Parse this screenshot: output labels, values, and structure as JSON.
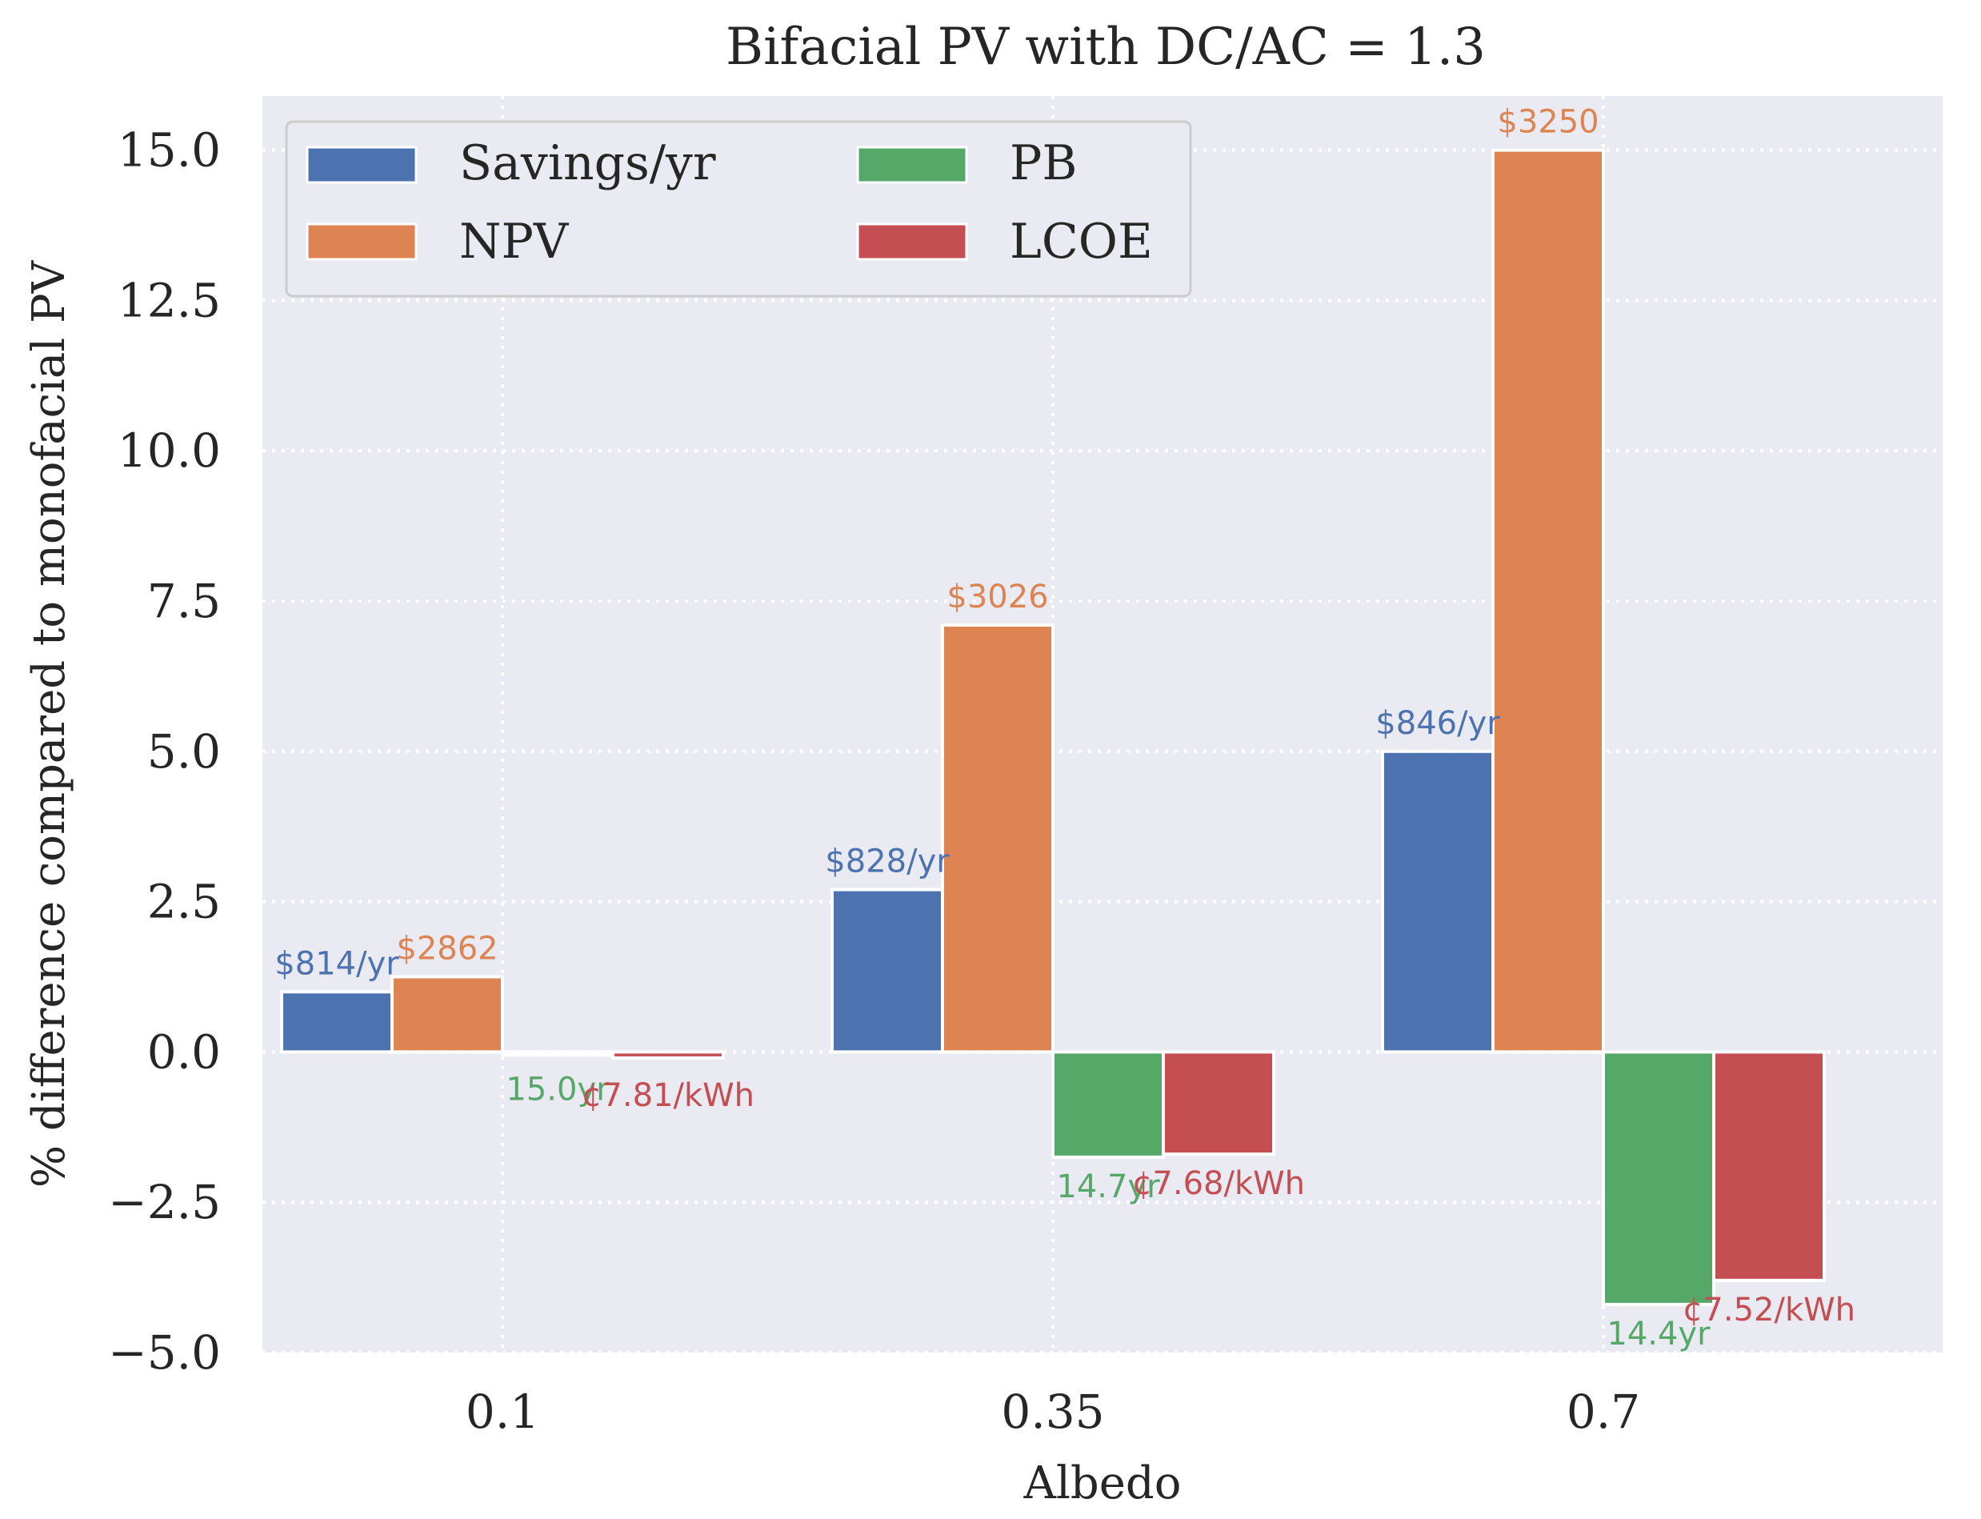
{
  "colors": {
    "plot_bg": "#eaeaf2",
    "grid": "#ffffff",
    "text": "#262626",
    "savings": "#4c72b0",
    "npv": "#dd8452",
    "pb": "#55a868",
    "lcoe": "#c44e52"
  },
  "chart_data": {
    "type": "bar",
    "title": "Bifacial PV with DC/AC = 1.3",
    "xlabel": "Albedo",
    "ylabel": "% difference compared to monofacial PV",
    "ylim": [
      -5.0,
      15.9
    ],
    "yticks": [
      "−5.0",
      "−2.5",
      "0.0",
      "2.5",
      "5.0",
      "7.5",
      "10.0",
      "12.5",
      "15.0"
    ],
    "ytick_values": [
      -5.0,
      -2.5,
      0.0,
      2.5,
      5.0,
      7.5,
      10.0,
      12.5,
      15.0
    ],
    "categories": [
      "0.1",
      "0.35",
      "0.7"
    ],
    "grid": true,
    "legend_position": "top-left",
    "series": [
      {
        "name": "Savings/yr",
        "color_key": "savings",
        "values": [
          1.0,
          2.7,
          5.0
        ],
        "labels": [
          "$814/yr",
          "$828/yr",
          "$846/yr"
        ]
      },
      {
        "name": "NPV",
        "color_key": "npv",
        "values": [
          1.25,
          7.1,
          15.0
        ],
        "labels": [
          "$2862",
          "$3026",
          "$3250"
        ]
      },
      {
        "name": "PB",
        "color_key": "pb",
        "values": [
          0.0,
          -1.75,
          -4.2
        ],
        "labels": [
          "15.0yr",
          "14.7yr",
          "14.4yr"
        ]
      },
      {
        "name": "LCOE",
        "color_key": "lcoe",
        "values": [
          -0.1,
          -1.7,
          -3.8
        ],
        "labels": [
          "¢7.81/kWh",
          "¢7.68/kWh",
          "¢7.52/kWh"
        ]
      }
    ]
  }
}
